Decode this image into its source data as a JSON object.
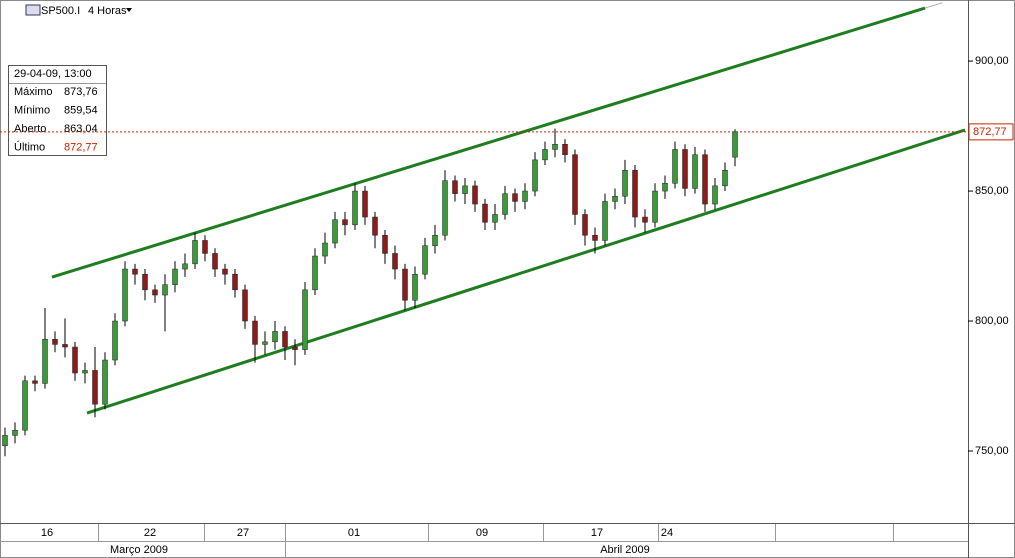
{
  "header": {
    "symbol": "SP500.I",
    "period": "4 Horas"
  },
  "info": {
    "date": "29-04-09, 13:00",
    "rows": [
      {
        "name": "Máximo",
        "text": "873,76"
      },
      {
        "name": "Mínimo",
        "text": "859,54"
      },
      {
        "name": "Aberto",
        "text": "863,04"
      },
      {
        "name": "Último",
        "text": "872,77"
      }
    ]
  },
  "chart_data": {
    "type": "candlestick",
    "up_color": "#3a9a3a",
    "down_color": "#8b1c1c",
    "wick_color": "#000000",
    "open": [
      752,
      756,
      758,
      777,
      776,
      793,
      791,
      790,
      780,
      781,
      768,
      785,
      800,
      820,
      818,
      812,
      810,
      814,
      820,
      822,
      831,
      826,
      820,
      818,
      812,
      800,
      791,
      792,
      796,
      790,
      789,
      812,
      825,
      830,
      839,
      837,
      850,
      840,
      833,
      826,
      820,
      808,
      818,
      829,
      833,
      854,
      849,
      852,
      845,
      838,
      841,
      849,
      846,
      850,
      862,
      866,
      868,
      864,
      841,
      833,
      831,
      846,
      848,
      858,
      840,
      838,
      850,
      853,
      866,
      851,
      864,
      845,
      852,
      863.04
    ],
    "high": [
      759,
      761,
      779,
      779,
      805,
      796,
      801,
      792,
      784,
      790,
      788,
      803,
      823,
      822,
      820,
      814,
      818,
      823,
      826,
      834,
      833,
      828,
      822,
      820,
      814,
      802,
      796,
      800,
      798,
      793,
      815,
      828,
      834,
      842,
      842,
      853,
      852,
      842,
      835,
      829,
      822,
      821,
      832,
      837,
      858,
      856,
      855,
      854,
      847,
      845,
      852,
      851,
      853,
      865,
      869,
      874,
      870,
      866,
      843,
      836,
      849,
      851,
      862,
      860,
      843,
      853,
      856,
      869,
      868,
      867,
      866,
      855,
      861,
      873.76
    ],
    "low": [
      748,
      753,
      756,
      773,
      774,
      788,
      786,
      777,
      776,
      763,
      766,
      783,
      798,
      814,
      808,
      807,
      796,
      811,
      817,
      820,
      823,
      817,
      814,
      809,
      797,
      784,
      787,
      789,
      785,
      783,
      787,
      810,
      822,
      828,
      833,
      835,
      837,
      828,
      822,
      816,
      804,
      805,
      816,
      826,
      831,
      846,
      845,
      842,
      835,
      835,
      839,
      842,
      843,
      848,
      860,
      863,
      861,
      837,
      829,
      826,
      829,
      843,
      845,
      836,
      834,
      836,
      847,
      851,
      848,
      849,
      842,
      843,
      850,
      859.54
    ],
    "close": [
      756,
      758,
      777,
      776,
      793,
      791,
      790,
      780,
      781,
      768,
      785,
      800,
      820,
      818,
      812,
      810,
      814,
      820,
      822,
      831,
      826,
      820,
      818,
      812,
      800,
      791,
      792,
      796,
      790,
      789,
      812,
      825,
      830,
      839,
      837,
      850,
      840,
      833,
      826,
      820,
      808,
      818,
      829,
      833,
      854,
      849,
      852,
      845,
      838,
      841,
      849,
      846,
      850,
      862,
      866,
      868,
      864,
      841,
      833,
      831,
      846,
      848,
      858,
      840,
      838,
      850,
      853,
      866,
      851,
      864,
      845,
      852,
      858,
      872.77
    ],
    "xlim": [
      -0.5,
      96.3
    ],
    "xticks": [
      {
        "value": 4.2,
        "label": "16"
      },
      {
        "value": 14.5,
        "label": "22"
      },
      {
        "value": 23.8,
        "label": "27"
      },
      {
        "value": 34.9,
        "label": "01"
      },
      {
        "value": 47.7,
        "label": "09"
      },
      {
        "value": 59.2,
        "label": "17"
      },
      {
        "value": 66.2,
        "label": "24"
      }
    ],
    "month_labels": [
      {
        "value": 13.4,
        "label": "Março 2009"
      },
      {
        "value": 62,
        "label": "Abril 2009"
      }
    ],
    "ylim": [
      722.3,
      923.5
    ],
    "yticks": [
      {
        "value": 750,
        "label": "750,00"
      },
      {
        "value": 800,
        "label": "800,00"
      },
      {
        "value": 850,
        "label": "850,00"
      },
      {
        "value": 900,
        "label": "900,00"
      }
    ],
    "last_price": {
      "value": 872.77,
      "label": "872,77",
      "color": "#cc2200"
    },
    "channel_lines": [
      {
        "x": [
          4.7,
          92.0
        ],
        "y": [
          816.9,
          920.4
        ],
        "color": "#1e7d1e"
      },
      {
        "x": [
          8.2,
          96.0
        ],
        "y": [
          764.6,
          873.5
        ],
        "color": "#1e7d1e"
      }
    ]
  }
}
